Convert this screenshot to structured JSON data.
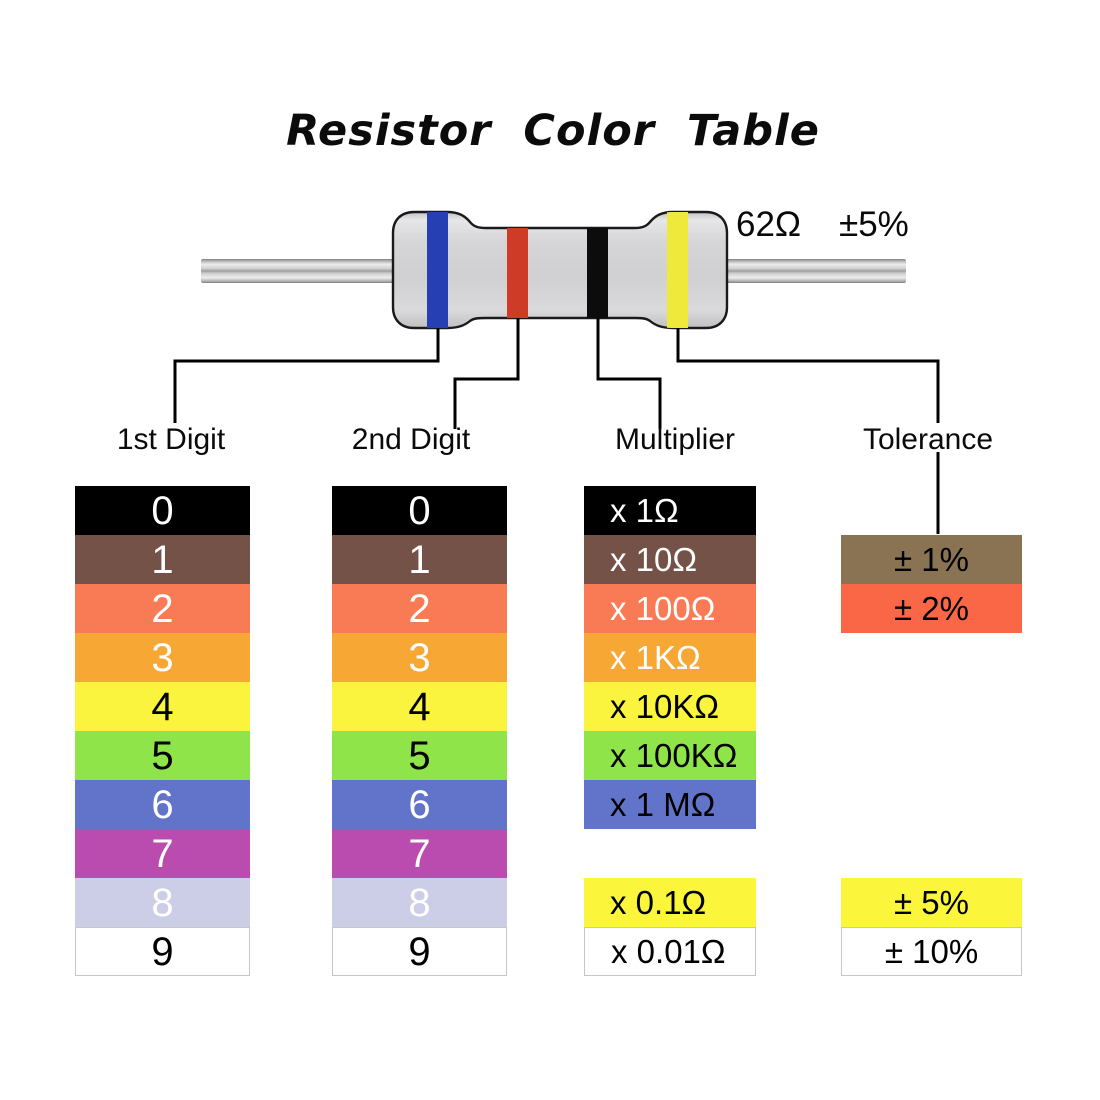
{
  "title": "Resistor Color Table",
  "resistor": {
    "value": "62Ω",
    "tolerance": "±5%",
    "body_color": "#d4d4d6",
    "bands": [
      {
        "name": "blue-band",
        "color": "#2640b4",
        "role": "1st Digit"
      },
      {
        "name": "red-band",
        "color": "#ce3b26",
        "role": "2nd Digit"
      },
      {
        "name": "black-band",
        "color": "#0c0c0c",
        "role": "Multiplier"
      },
      {
        "name": "yellow-band",
        "color": "#eee93a",
        "role": "Tolerance"
      }
    ]
  },
  "headers": {
    "digit1": "1st Digit",
    "digit2": "2nd Digit",
    "multiplier": "Multiplier",
    "tolerance": "Tolerance"
  },
  "digit_rows": [
    {
      "row": 0,
      "label": "0",
      "bg": "#000000",
      "fg": "#ffffff"
    },
    {
      "row": 1,
      "label": "1",
      "bg": "#755247",
      "fg": "#ffffff"
    },
    {
      "row": 2,
      "label": "2",
      "bg": "#f87b55",
      "fg": "#ffffff"
    },
    {
      "row": 3,
      "label": "3",
      "bg": "#f7a733",
      "fg": "#ffffff"
    },
    {
      "row": 4,
      "label": "4",
      "bg": "#faf43e",
      "fg": "#000000"
    },
    {
      "row": 5,
      "label": "5",
      "bg": "#8ee449",
      "fg": "#000000"
    },
    {
      "row": 6,
      "label": "6",
      "bg": "#6274c9",
      "fg": "#ffffff"
    },
    {
      "row": 7,
      "label": "7",
      "bg": "#bb4caf",
      "fg": "#ffffff"
    },
    {
      "row": 8,
      "label": "8",
      "bg": "#cbcee6",
      "fg": "#ffffff"
    },
    {
      "row": 9,
      "label": "9",
      "bg": "#ffffff",
      "fg": "#000000",
      "border": true
    }
  ],
  "multiplier_rows": [
    {
      "row": 0,
      "label": "x 1Ω",
      "bg": "#000000",
      "fg": "#ffffff"
    },
    {
      "row": 1,
      "label": "x 10Ω",
      "bg": "#755247",
      "fg": "#ffffff"
    },
    {
      "row": 2,
      "label": "x 100Ω",
      "bg": "#f87b55",
      "fg": "#ffffff"
    },
    {
      "row": 3,
      "label": "x 1KΩ",
      "bg": "#f7a733",
      "fg": "#ffffff"
    },
    {
      "row": 4,
      "label": "x 10KΩ",
      "bg": "#faf43e",
      "fg": "#000000"
    },
    {
      "row": 5,
      "label": "x 100KΩ",
      "bg": "#8ee449",
      "fg": "#000000"
    },
    {
      "row": 6,
      "label": "x 1 MΩ",
      "bg": "#6274c9",
      "fg": "#000000"
    },
    {
      "row": 8,
      "label": "x 0.1Ω",
      "bg": "#fbf63c",
      "fg": "#000000"
    },
    {
      "row": 9,
      "label": "x 0.01Ω",
      "bg": "#ffffff",
      "fg": "#000000",
      "border": true
    }
  ],
  "tolerance_rows": [
    {
      "row": 1,
      "label": "± 1%",
      "bg": "#8a7352",
      "fg": "#000000"
    },
    {
      "row": 2,
      "label": "± 2%",
      "bg": "#f96747",
      "fg": "#000000"
    },
    {
      "row": 8,
      "label": "± 5%",
      "bg": "#fbf63c",
      "fg": "#000000"
    },
    {
      "row": 9,
      "label": "± 10%",
      "bg": "#ffffff",
      "fg": "#000000",
      "border": true
    }
  ],
  "columns": [
    {
      "host": "col-digit1",
      "rows_key": "digit_rows",
      "variant": "digit"
    },
    {
      "host": "col-digit2",
      "rows_key": "digit_rows",
      "variant": "digit"
    },
    {
      "host": "col-multiplier",
      "rows_key": "multiplier_rows",
      "variant": "mult"
    },
    {
      "host": "col-tolerance",
      "rows_key": "tolerance_rows",
      "variant": "tol"
    }
  ]
}
